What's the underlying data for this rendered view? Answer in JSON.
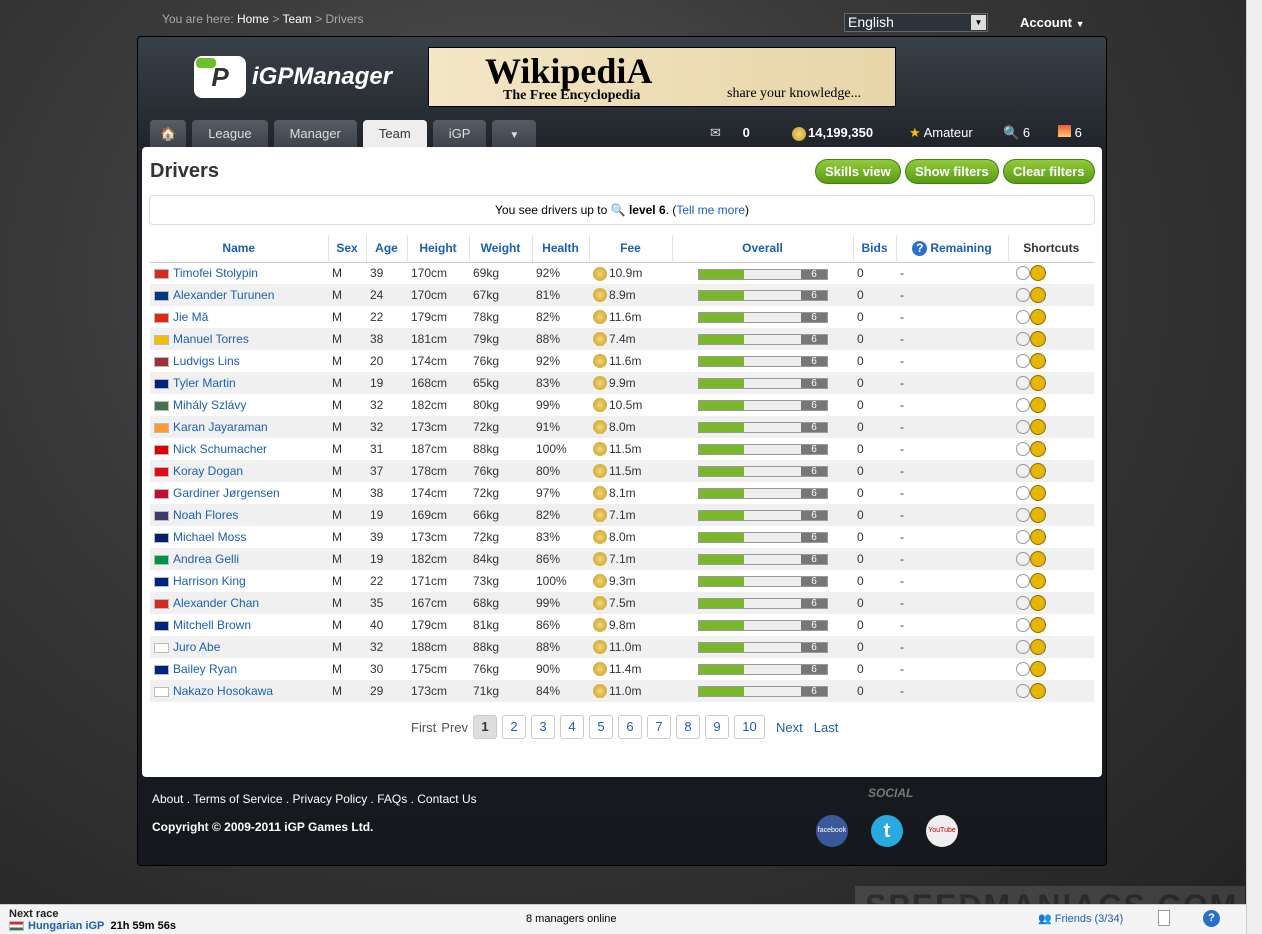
{
  "breadcrumb": {
    "prefix": "You are here:",
    "items": [
      "Home",
      "Team",
      "Drivers"
    ]
  },
  "language": "English",
  "account": "Account",
  "logo": "iGPManager",
  "banner": {
    "title": "WikipediA",
    "subtitle": "The Free Encyclopedia",
    "tagline": "share your knowledge..."
  },
  "tabs": [
    "League",
    "Manager",
    "Team",
    "iGP"
  ],
  "active_tab": "Team",
  "stats": {
    "messages": "0",
    "money": "14,199,350",
    "level": "Amateur",
    "search_level": "6",
    "other": "6"
  },
  "page_title": "Drivers",
  "buttons": {
    "skills": "Skills view",
    "show_filters": "Show filters",
    "clear_filters": "Clear filters"
  },
  "info": {
    "pre": "You see drivers up to",
    "level": "level 6",
    "post": ". (",
    "link": "Tell me more",
    "end": ")"
  },
  "columns": [
    "Name",
    "Sex",
    "Age",
    "Height",
    "Weight",
    "Health",
    "Fee",
    "Overall",
    "Bids",
    "Remaining",
    "Shortcuts"
  ],
  "rows": [
    {
      "flag": "#d52b1e",
      "name": "Timofei Stolypin",
      "sex": "M",
      "age": "39",
      "height": "170cm",
      "weight": "69kg",
      "health": "92%",
      "fee": "10.9m",
      "overall": 6,
      "bids": "0",
      "remaining": "-"
    },
    {
      "flag": "#003580",
      "name": "Alexander Turunen",
      "sex": "M",
      "age": "24",
      "height": "170cm",
      "weight": "67kg",
      "health": "81%",
      "fee": "8.9m",
      "overall": 6,
      "bids": "0",
      "remaining": "-"
    },
    {
      "flag": "#de2910",
      "name": "Jie Mă",
      "sex": "M",
      "age": "22",
      "height": "179cm",
      "weight": "78kg",
      "health": "82%",
      "fee": "11.6m",
      "overall": 6,
      "bids": "0",
      "remaining": "-"
    },
    {
      "flag": "#f1bf00",
      "name": "Manuel Torres",
      "sex": "M",
      "age": "38",
      "height": "181cm",
      "weight": "79kg",
      "health": "88%",
      "fee": "7.4m",
      "overall": 6,
      "bids": "0",
      "remaining": "-"
    },
    {
      "flag": "#9e3039",
      "name": "Ludvigs Lins",
      "sex": "M",
      "age": "20",
      "height": "174cm",
      "weight": "76kg",
      "health": "92%",
      "fee": "11.6m",
      "overall": 6,
      "bids": "0",
      "remaining": "-"
    },
    {
      "flag": "#00247d",
      "name": "Tyler Martin",
      "sex": "M",
      "age": "19",
      "height": "168cm",
      "weight": "65kg",
      "health": "83%",
      "fee": "9.9m",
      "overall": 6,
      "bids": "0",
      "remaining": "-"
    },
    {
      "flag": "#477050",
      "name": "Mihály Szlávy",
      "sex": "M",
      "age": "32",
      "height": "182cm",
      "weight": "80kg",
      "health": "99%",
      "fee": "10.5m",
      "overall": 6,
      "bids": "0",
      "remaining": "-"
    },
    {
      "flag": "#ff9933",
      "name": "Karan Jayaraman",
      "sex": "M",
      "age": "32",
      "height": "173cm",
      "weight": "72kg",
      "health": "91%",
      "fee": "8.0m",
      "overall": 6,
      "bids": "0",
      "remaining": "-"
    },
    {
      "flag": "#dd0000",
      "name": "Nick Schumacher",
      "sex": "M",
      "age": "31",
      "height": "187cm",
      "weight": "88kg",
      "health": "100%",
      "fee": "11.5m",
      "overall": 6,
      "bids": "0",
      "remaining": "-"
    },
    {
      "flag": "#e30a17",
      "name": "Koray Dogan",
      "sex": "M",
      "age": "37",
      "height": "178cm",
      "weight": "76kg",
      "health": "80%",
      "fee": "11.5m",
      "overall": 6,
      "bids": "0",
      "remaining": "-"
    },
    {
      "flag": "#c60c30",
      "name": "Gardiner Jørgensen",
      "sex": "M",
      "age": "38",
      "height": "174cm",
      "weight": "72kg",
      "health": "97%",
      "fee": "8.1m",
      "overall": 6,
      "bids": "0",
      "remaining": "-"
    },
    {
      "flag": "#3c3b6e",
      "name": "Noah Flores",
      "sex": "M",
      "age": "19",
      "height": "169cm",
      "weight": "66kg",
      "health": "82%",
      "fee": "7.1m",
      "overall": 6,
      "bids": "0",
      "remaining": "-"
    },
    {
      "flag": "#012169",
      "name": "Michael Moss",
      "sex": "M",
      "age": "39",
      "height": "173cm",
      "weight": "72kg",
      "health": "83%",
      "fee": "8.0m",
      "overall": 6,
      "bids": "0",
      "remaining": "-"
    },
    {
      "flag": "#009246",
      "name": "Andrea Gelli",
      "sex": "M",
      "age": "19",
      "height": "182cm",
      "weight": "84kg",
      "health": "86%",
      "fee": "7.1m",
      "overall": 6,
      "bids": "0",
      "remaining": "-"
    },
    {
      "flag": "#00247d",
      "name": "Harrison King",
      "sex": "M",
      "age": "22",
      "height": "171cm",
      "weight": "73kg",
      "health": "100%",
      "fee": "9.3m",
      "overall": 6,
      "bids": "0",
      "remaining": "-"
    },
    {
      "flag": "#d52b1e",
      "name": "Alexander Chan",
      "sex": "M",
      "age": "35",
      "height": "167cm",
      "weight": "68kg",
      "health": "99%",
      "fee": "7.5m",
      "overall": 6,
      "bids": "0",
      "remaining": "-"
    },
    {
      "flag": "#00247d",
      "name": "Mitchell Brown",
      "sex": "M",
      "age": "40",
      "height": "179cm",
      "weight": "81kg",
      "health": "86%",
      "fee": "9.8m",
      "overall": 6,
      "bids": "0",
      "remaining": "-"
    },
    {
      "flag": "#ffffff",
      "name": "Juro Abe",
      "sex": "M",
      "age": "32",
      "height": "188cm",
      "weight": "88kg",
      "health": "88%",
      "fee": "11.0m",
      "overall": 6,
      "bids": "0",
      "remaining": "-"
    },
    {
      "flag": "#00247d",
      "name": "Bailey Ryan",
      "sex": "M",
      "age": "30",
      "height": "175cm",
      "weight": "76kg",
      "health": "90%",
      "fee": "11.4m",
      "overall": 6,
      "bids": "0",
      "remaining": "-"
    },
    {
      "flag": "#ffffff",
      "name": "Nakazo Hosokawa",
      "sex": "M",
      "age": "29",
      "height": "173cm",
      "weight": "71kg",
      "health": "84%",
      "fee": "11.0m",
      "overall": 6,
      "bids": "0",
      "remaining": "-"
    }
  ],
  "overall_max": 20,
  "pager": {
    "first": "First",
    "prev": "Prev",
    "pages": [
      "1",
      "2",
      "3",
      "4",
      "5",
      "6",
      "7",
      "8",
      "9",
      "10"
    ],
    "current": "1",
    "next": "Next",
    "last": "Last"
  },
  "footer": {
    "links": [
      "About",
      "Terms of Service",
      "Privacy Policy",
      "FAQs",
      "Contact Us"
    ],
    "copyright": "Copyright © 2009-2011 iGP Games Ltd.",
    "social": "SOCIAL",
    "facebook": "facebook",
    "youtube": "YouTube"
  },
  "statusbar": {
    "next_race_label": "Next race",
    "race": "Hungarian iGP",
    "countdown": "21h 59m 56s",
    "online": "8 managers online",
    "friends": "Friends (3/34)"
  },
  "watermark": "SPEEDMANIACS.COM"
}
